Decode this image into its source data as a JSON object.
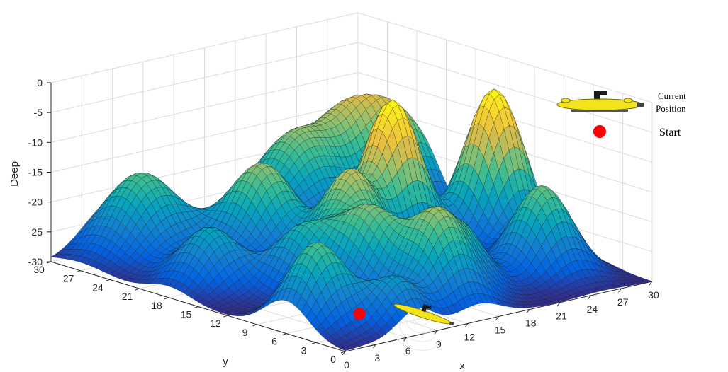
{
  "chart_data": {
    "type": "surface3d",
    "title": "",
    "xlabel": "x",
    "ylabel": "y",
    "zlabel": "Deep",
    "xlim": [
      0,
      30
    ],
    "ylim": [
      0,
      30
    ],
    "zlim": [
      -30,
      0
    ],
    "x_ticks": [
      "0",
      "3",
      "6",
      "9",
      "12",
      "15",
      "18",
      "21",
      "24",
      "27",
      "30"
    ],
    "y_ticks": [
      "0",
      "3",
      "6",
      "9",
      "12",
      "15",
      "18",
      "21",
      "24",
      "27",
      "30"
    ],
    "z_ticks": [
      "0",
      "-5",
      "-10",
      "-15",
      "-20",
      "-25",
      "-30"
    ],
    "grid": true,
    "colormap": "parula",
    "peaks": [
      {
        "x": 6,
        "y": 27,
        "height": 14,
        "width": 2.8
      },
      {
        "x": 4,
        "y": 18,
        "height": 10,
        "width": 2.2
      },
      {
        "x": 8,
        "y": 13,
        "height": 10,
        "width": 2.0
      },
      {
        "x": 12,
        "y": 21,
        "height": 16,
        "width": 2.5
      },
      {
        "x": 11,
        "y": 9,
        "height": 14,
        "width": 2.2
      },
      {
        "x": 14,
        "y": 14,
        "height": 17,
        "width": 2.2
      },
      {
        "x": 20,
        "y": 16,
        "height": 26,
        "width": 2.2
      },
      {
        "x": 3,
        "y": 6,
        "height": 14,
        "width": 2.2
      },
      {
        "x": 13,
        "y": 4,
        "height": 15,
        "width": 2.2
      },
      {
        "x": 20,
        "y": 26,
        "height": 15,
        "width": 3.0
      },
      {
        "x": 28,
        "y": 14,
        "height": 26,
        "width": 2.2
      },
      {
        "x": 26,
        "y": 27,
        "height": 14,
        "width": 2.6
      },
      {
        "x": 25,
        "y": 6,
        "height": 15,
        "width": 2.2
      },
      {
        "x": 29,
        "y": 24,
        "height": 13,
        "width": 2.4
      },
      {
        "x": 7,
        "y": 2,
        "height": 8,
        "width": 1.8
      },
      {
        "x": 17,
        "y": 6,
        "height": 10,
        "width": 2.0
      }
    ],
    "markers": [
      {
        "name": "Start",
        "x": 3.3,
        "y": 2.0,
        "z": -26
      },
      {
        "name": "Current Position",
        "x": 9.0,
        "y": 1.5,
        "z": -28
      }
    ],
    "legend": {
      "placement": "top-right",
      "entries": [
        {
          "label_lines": [
            "Current",
            "Position"
          ],
          "icon": "submarine-icon"
        },
        {
          "label_lines": [
            "Start"
          ],
          "icon": "red-dot-icon"
        }
      ]
    },
    "colors": {
      "start_marker": "#ff0000",
      "submarine_body": "#f2e31a",
      "grid": "#dcdcdc",
      "axis": "#262626"
    }
  }
}
